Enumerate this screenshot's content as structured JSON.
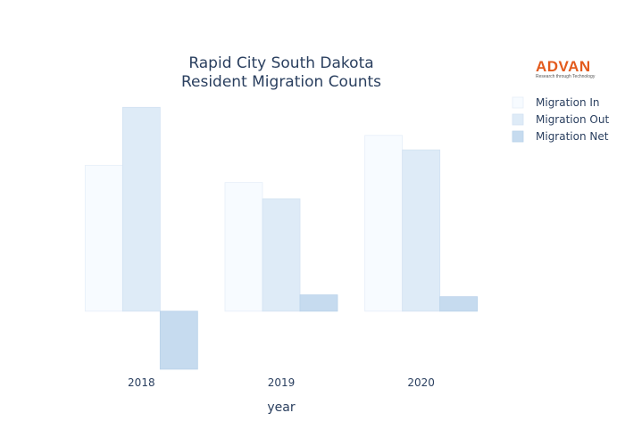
{
  "chart_data": {
    "type": "bar",
    "title_lines": [
      "Rapid City South Dakota",
      "Resident Migration Counts"
    ],
    "xlabel": "year",
    "ylabel": "",
    "categories": [
      "2018",
      "2019",
      "2020"
    ],
    "series": [
      {
        "name": "Migration In",
        "values": [
          161,
          142,
          194
        ],
        "color": "#f7fbff",
        "stroke": "#e6eef8"
      },
      {
        "name": "Migration Out",
        "values": [
          225,
          124,
          178
        ],
        "color": "#deebf7",
        "stroke": "#d2e2f2"
      },
      {
        "name": "Migration Net",
        "values": [
          -64,
          18,
          16
        ],
        "color": "#c6dbef",
        "stroke": "#b9d2ea"
      }
    ],
    "ylim": [
      -70,
      245
    ],
    "grid": false,
    "legend_position": "top-right"
  },
  "logo": {
    "main": "ADVAN",
    "sub": "Research through Technology",
    "color": "#e35a1c"
  }
}
